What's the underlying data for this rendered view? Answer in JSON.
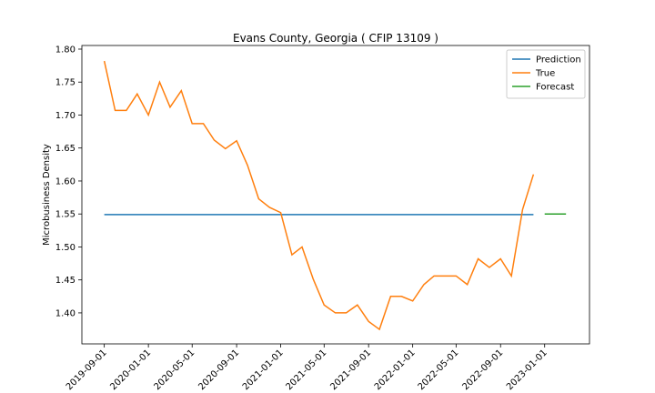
{
  "chart_data": {
    "type": "line",
    "title": "Evans County, Georgia ( CFIP 13109 )",
    "y_label": "Microbusiness Density",
    "xlim": [
      "2019-07-01",
      "2023-05-05"
    ],
    "ylim": [
      1.353,
      1.8055
    ],
    "xticks": [
      "2019-09-01",
      "2020-01-01",
      "2020-05-01",
      "2020-09-01",
      "2021-01-01",
      "2021-05-01",
      "2021-09-01",
      "2022-01-01",
      "2022-05-01",
      "2022-09-01",
      "2023-01-01"
    ],
    "yticks": [
      {
        "value": 1.4,
        "label": "1.40"
      },
      {
        "value": 1.45,
        "label": "1.45"
      },
      {
        "value": 1.5,
        "label": "1.50"
      },
      {
        "value": 1.55,
        "label": "1.55"
      },
      {
        "value": 1.6,
        "label": "1.60"
      },
      {
        "value": 1.65,
        "label": "1.65"
      },
      {
        "value": 1.7,
        "label": "1.70"
      },
      {
        "value": 1.75,
        "label": "1.75"
      },
      {
        "value": 1.8,
        "label": "1.80"
      }
    ],
    "legend": "upper right",
    "series": [
      {
        "name": "Prediction",
        "color": "#1f77b4",
        "x": [
          "2019-09-01",
          "2019-10-01",
          "2019-11-01",
          "2019-12-01",
          "2020-01-01",
          "2020-02-01",
          "2020-03-01",
          "2020-04-01",
          "2020-05-01",
          "2020-06-01",
          "2020-07-01",
          "2020-08-01",
          "2020-09-01",
          "2020-10-01",
          "2020-11-01",
          "2020-12-01",
          "2021-01-01",
          "2021-02-01",
          "2021-03-01",
          "2021-04-01",
          "2021-05-01",
          "2021-06-01",
          "2021-07-01",
          "2021-08-01",
          "2021-09-01",
          "2021-10-01",
          "2021-11-01",
          "2021-12-01",
          "2022-01-01",
          "2022-02-01",
          "2022-03-01",
          "2022-04-01",
          "2022-05-01",
          "2022-06-01",
          "2022-07-01",
          "2022-08-01",
          "2022-09-01",
          "2022-10-01",
          "2022-11-01",
          "2022-12-01"
        ],
        "values": [
          1.549,
          1.549,
          1.549,
          1.549,
          1.549,
          1.549,
          1.549,
          1.549,
          1.549,
          1.549,
          1.549,
          1.549,
          1.549,
          1.549,
          1.549,
          1.549,
          1.549,
          1.549,
          1.549,
          1.549,
          1.549,
          1.549,
          1.549,
          1.549,
          1.549,
          1.549,
          1.549,
          1.549,
          1.549,
          1.549,
          1.549,
          1.549,
          1.549,
          1.549,
          1.549,
          1.549,
          1.549,
          1.549,
          1.549,
          1.549
        ]
      },
      {
        "name": "True",
        "color": "#ff7f0e",
        "x": [
          "2019-09-01",
          "2019-10-01",
          "2019-11-01",
          "2019-12-01",
          "2020-01-01",
          "2020-02-01",
          "2020-03-01",
          "2020-04-01",
          "2020-05-01",
          "2020-06-01",
          "2020-07-01",
          "2020-08-01",
          "2020-09-01",
          "2020-10-01",
          "2020-11-01",
          "2020-12-01",
          "2021-01-01",
          "2021-02-01",
          "2021-03-01",
          "2021-04-01",
          "2021-05-01",
          "2021-06-01",
          "2021-07-01",
          "2021-08-01",
          "2021-09-01",
          "2021-10-01",
          "2021-11-01",
          "2021-12-01",
          "2022-01-01",
          "2022-02-01",
          "2022-03-01",
          "2022-04-01",
          "2022-05-01",
          "2022-06-01",
          "2022-07-01",
          "2022-08-01",
          "2022-09-01",
          "2022-10-01",
          "2022-11-01",
          "2022-12-01"
        ],
        "values": [
          1.782,
          1.707,
          1.707,
          1.732,
          1.7,
          1.75,
          1.712,
          1.737,
          1.687,
          1.687,
          1.662,
          1.649,
          1.661,
          1.624,
          1.573,
          1.56,
          1.552,
          1.488,
          1.5,
          1.451,
          1.412,
          1.4,
          1.4,
          1.412,
          1.387,
          1.375,
          1.425,
          1.425,
          1.418,
          1.443,
          1.456,
          1.456,
          1.456,
          1.443,
          1.482,
          1.469,
          1.482,
          1.456,
          1.557,
          1.61
        ]
      },
      {
        "name": "Forecast",
        "color": "#2ca02c",
        "x": [
          "2023-01-01",
          "2023-02-01",
          "2023-03-01"
        ],
        "values": [
          1.55,
          1.55,
          1.55
        ]
      }
    ]
  }
}
